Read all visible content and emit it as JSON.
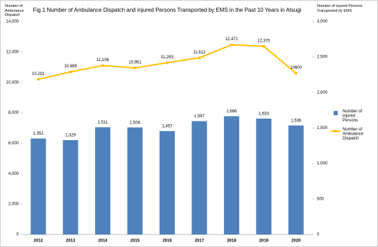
{
  "chart_data": {
    "type": "bar",
    "title": "Fig.1 Number of Ambulance Dispatch and injured Persons Transported by EMS in the Past  10 Years in Atsugi",
    "y_label": "Number of Ambulance Dispatch",
    "y2_label": "Number of injured Persons Transported by EMS",
    "categories": [
      "2012",
      "2013",
      "2014",
      "2015",
      "2016",
      "2017",
      "2018",
      "2019",
      "2020"
    ],
    "series": [
      {
        "name": "Number of injured Persons",
        "type": "bar",
        "axis": "y2",
        "color": "#4f81bd",
        "values": [
          1352,
          1329,
          1511,
          1508,
          1457,
          1597,
          1666,
          1633,
          1536
        ],
        "value_labels": [
          "1,352",
          "1,329",
          "1,511",
          "1,508",
          "1,457",
          "1,597",
          "1,666",
          "1,633",
          "1,536"
        ]
      },
      {
        "name": "Number of Ambulance Dispatch",
        "type": "line",
        "axis": "y",
        "color": "#ffc000",
        "values": [
          10201,
          10689,
          11106,
          10951,
          11293,
          11612,
          12471,
          12370,
          10600
        ],
        "value_labels": [
          "10,201",
          "10,689",
          "11,106",
          "10,951",
          "11,293",
          "11,612",
          "12,471",
          "12,370",
          "10600"
        ]
      }
    ],
    "ylim": [
      0,
      14000
    ],
    "yticks": [
      0,
      {
        "value": 2000,
        "label": "2,000"
      },
      {
        "value": 4000,
        "label": "4,000"
      },
      {
        "value": 6000,
        "label": "6,000"
      },
      {
        "value": 8000,
        "label": "8,000"
      },
      {
        "value": 10000,
        "label": "10,000"
      },
      {
        "value": 12000,
        "label": "12,000"
      },
      {
        "value": 14000,
        "label": "14,000"
      }
    ],
    "y2lim": [
      0,
      3000
    ],
    "y2ticks": [
      0,
      500,
      {
        "value": 1000,
        "label": "1,000"
      },
      {
        "value": 1500,
        "label": "1,500"
      },
      {
        "value": 2000,
        "label": "2,000"
      },
      {
        "value": 2500,
        "label": "2,500"
      },
      {
        "value": 3000,
        "label": "3,000"
      }
    ],
    "legend": "right"
  }
}
